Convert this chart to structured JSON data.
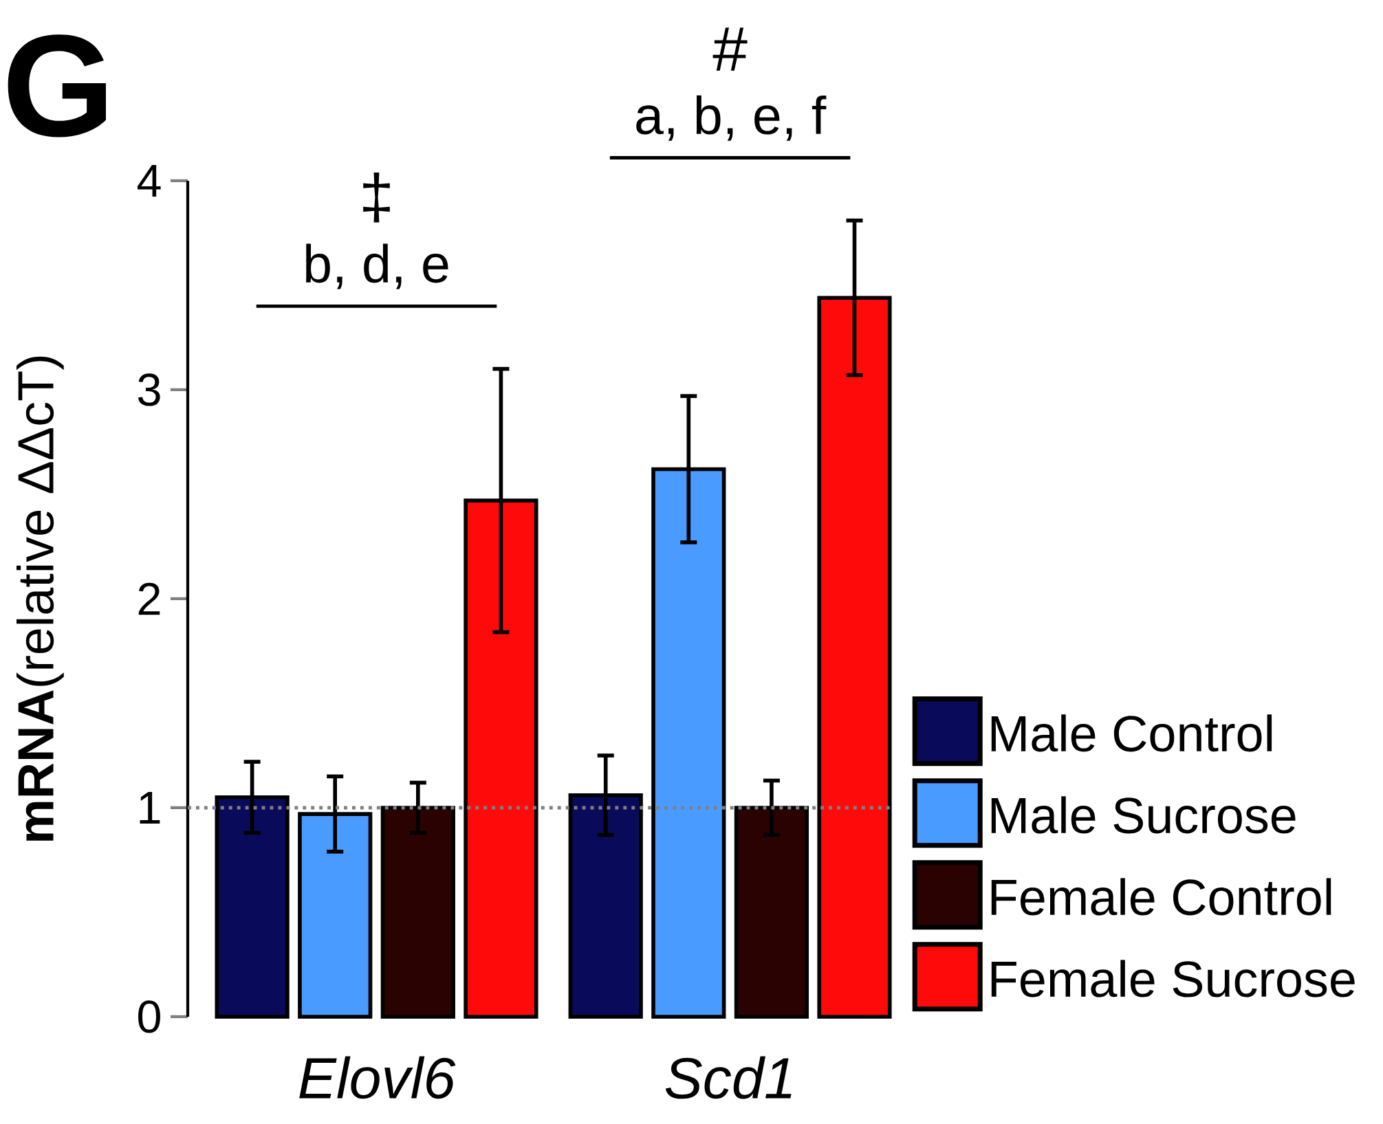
{
  "chart_data": {
    "type": "bar",
    "title": "G",
    "ylabel": "**mRNA**(relative ΔΔcT)",
    "categories": [
      "Elovl6",
      "Scd1"
    ],
    "series": [
      {
        "name": "Male Control",
        "color": "#0a0a5a",
        "values": [
          1.05,
          1.06
        ],
        "errors": [
          0.17,
          0.19
        ]
      },
      {
        "name": "Male Sucrose",
        "color": "#4a9bff",
        "values": [
          0.97,
          2.62
        ],
        "errors": [
          0.18,
          0.35
        ]
      },
      {
        "name": "Female Control",
        "color": "#2a0202",
        "values": [
          1.0,
          1.0
        ],
        "errors": [
          0.12,
          0.13
        ]
      },
      {
        "name": "Female Sucrose",
        "color": "#ff0a0a",
        "values": [
          2.47,
          3.44
        ],
        "errors": [
          0.63,
          0.37
        ]
      }
    ],
    "ylim": [
      0,
      4
    ],
    "yticks": [
      0,
      1,
      2,
      3,
      4
    ],
    "ref_lines": [
      {
        "axis": "y",
        "value": 1,
        "color": "#808080",
        "line_style": "dotted"
      }
    ],
    "annotations": [
      "‡",
      "b, d, e",
      "#",
      "a, b, e, f"
    ],
    "legend": "bottom right"
  }
}
